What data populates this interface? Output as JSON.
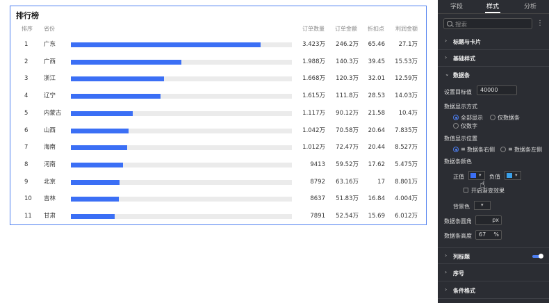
{
  "card": {
    "title": "排行榜",
    "headers": {
      "rank": "排序",
      "province": "省份",
      "orders": "订单数量",
      "amount": "订单金额",
      "discount": "折扣点",
      "profit": "利润金额"
    },
    "rows": [
      {
        "rank": "1",
        "province": "广东",
        "orders": "3.423万",
        "amount": "246.2万",
        "discount": "65.46",
        "profit": "27.1万",
        "fill": 0.86
      },
      {
        "rank": "2",
        "province": "广西",
        "orders": "1.988万",
        "amount": "140.3万",
        "discount": "39.45",
        "profit": "15.53万",
        "fill": 0.5
      },
      {
        "rank": "3",
        "province": "浙江",
        "orders": "1.668万",
        "amount": "120.3万",
        "discount": "32.01",
        "profit": "12.59万",
        "fill": 0.42
      },
      {
        "rank": "4",
        "province": "辽宁",
        "orders": "1.615万",
        "amount": "111.8万",
        "discount": "28.53",
        "profit": "14.03万",
        "fill": 0.405
      },
      {
        "rank": "5",
        "province": "内蒙古",
        "orders": "1.117万",
        "amount": "90.12万",
        "discount": "21.58",
        "profit": "10.4万",
        "fill": 0.28
      },
      {
        "rank": "6",
        "province": "山西",
        "orders": "1.042万",
        "amount": "70.58万",
        "discount": "20.64",
        "profit": "7.835万",
        "fill": 0.262
      },
      {
        "rank": "7",
        "province": "海南",
        "orders": "1.012万",
        "amount": "72.47万",
        "discount": "20.44",
        "profit": "8.527万",
        "fill": 0.254
      },
      {
        "rank": "8",
        "province": "河南",
        "orders": "9413",
        "amount": "59.52万",
        "discount": "17.62",
        "profit": "5.475万",
        "fill": 0.236
      },
      {
        "rank": "9",
        "province": "北京",
        "orders": "8792",
        "amount": "63.16万",
        "discount": "17",
        "profit": "8.801万",
        "fill": 0.22
      },
      {
        "rank": "10",
        "province": "吉林",
        "orders": "8637",
        "amount": "51.83万",
        "discount": "16.84",
        "profit": "4.004万",
        "fill": 0.216
      },
      {
        "rank": "11",
        "province": "甘肃",
        "orders": "7891",
        "amount": "52.54万",
        "discount": "15.69",
        "profit": "6.012万",
        "fill": 0.198
      }
    ],
    "bar_color": "#3b6ff5"
  },
  "panel": {
    "tabs": [
      "字段",
      "样式",
      "分析"
    ],
    "active_tab": "样式",
    "search_placeholder": "搜索",
    "sections": {
      "title_card": "标题与卡片",
      "basic_style": "基础样式",
      "data_bar": "数据条",
      "column_title": "列标题",
      "serial": "序号",
      "conditional": "条件格式"
    },
    "target_label": "设置目标值",
    "target_value": "40000",
    "display_mode_label": "数据显示方式",
    "display_modes": [
      "全部显示",
      "仅数据条",
      "仅数字"
    ],
    "position_label": "数值显示位置",
    "positions": [
      "数据条右侧",
      "数据条左侧"
    ],
    "bar_color_label": "数据条颜色",
    "positive_label": "正值",
    "negative_label": "负值",
    "positive_color": "#3b6ff5",
    "negative_color": "#3aa0ea",
    "gradient_label": "开启渐变效果",
    "background_label": "背景色",
    "radius_label": "数据条圆角",
    "radius_unit": "px",
    "height_label": "数据条高度",
    "height_value": "67",
    "height_unit": "%"
  }
}
